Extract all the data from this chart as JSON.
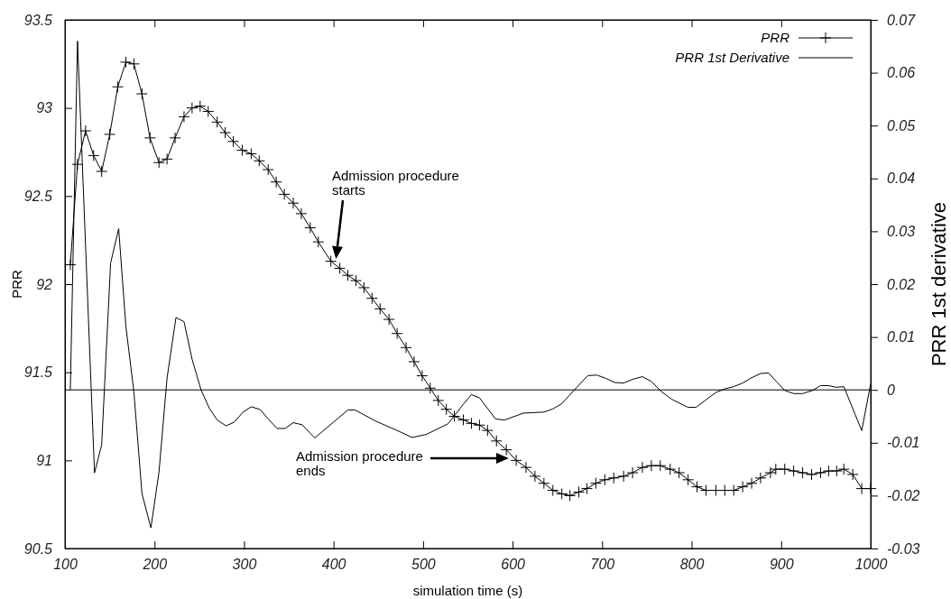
{
  "chart_data": {
    "type": "line",
    "xlabel": "simulation time (s)",
    "ylabel": "PRR",
    "y2label": "PRR 1st derivative",
    "xlim": [
      100,
      1000
    ],
    "xticks": [
      100,
      200,
      300,
      400,
      500,
      600,
      700,
      800,
      900,
      1000
    ],
    "ylim": [
      90.5,
      93.5
    ],
    "yticks": [
      90.5,
      91,
      91.5,
      92,
      92.5,
      93,
      93.5
    ],
    "y2lim": [
      -0.03,
      0.07
    ],
    "y2ticks": [
      -0.03,
      -0.02,
      -0.01,
      0,
      0.01,
      0.02,
      0.03,
      0.04,
      0.05,
      0.06,
      0.07
    ],
    "legend": "top right",
    "grid": false,
    "series": [
      {
        "name": "PRR",
        "color": "#000000",
        "marker": "cross",
        "x": [
          106,
          114,
          123,
          132,
          141,
          150,
          159,
          168,
          177,
          186,
          195,
          205,
          214,
          223,
          233,
          242,
          251,
          260,
          270,
          279,
          288,
          298,
          308,
          317,
          327,
          336,
          345,
          355,
          364,
          374,
          383,
          397,
          407,
          416,
          425,
          434,
          443,
          452,
          462,
          471,
          481,
          490,
          499,
          508,
          517,
          526,
          535,
          545,
          554,
          563,
          572,
          582,
          593,
          604,
          615,
          625,
          635,
          645,
          655,
          664,
          674,
          683,
          693,
          703,
          713,
          724,
          734,
          745,
          755,
          765,
          776,
          786,
          796,
          806,
          816,
          827,
          837,
          847,
          857,
          867,
          877,
          888,
          894,
          904,
          914,
          924,
          934,
          944,
          953,
          962,
          970,
          980,
          990,
          1000
        ],
        "values": [
          92.11,
          92.68,
          92.87,
          92.73,
          92.64,
          92.85,
          93.12,
          93.26,
          93.25,
          93.08,
          92.83,
          92.69,
          92.71,
          92.83,
          92.95,
          93.0,
          93.01,
          92.98,
          92.92,
          92.86,
          92.81,
          92.76,
          92.74,
          92.7,
          92.65,
          92.58,
          92.51,
          92.46,
          92.4,
          92.32,
          92.24,
          92.13,
          92.09,
          92.05,
          92.02,
          91.98,
          91.92,
          91.86,
          91.8,
          91.72,
          91.64,
          91.56,
          91.48,
          91.41,
          91.34,
          91.29,
          91.25,
          91.23,
          91.21,
          91.2,
          91.17,
          91.11,
          91.06,
          91.0,
          90.96,
          90.91,
          90.87,
          90.83,
          90.81,
          90.8,
          90.82,
          90.84,
          90.87,
          90.89,
          90.9,
          90.91,
          90.93,
          90.96,
          90.97,
          90.97,
          90.95,
          90.93,
          90.89,
          90.85,
          90.83,
          90.83,
          90.83,
          90.83,
          90.85,
          90.87,
          90.9,
          90.93,
          90.95,
          90.95,
          90.94,
          90.93,
          90.92,
          90.93,
          90.94,
          90.94,
          90.95,
          90.92,
          90.84,
          90.84
        ]
      },
      {
        "name": "PRR 1st Derivative",
        "color": "#000000",
        "marker": "none",
        "axis": "y2",
        "x": [
          106,
          114,
          133,
          141,
          151,
          160,
          168,
          177,
          186,
          196,
          205,
          214,
          224,
          233,
          242,
          252,
          261,
          270,
          280,
          289,
          299,
          308,
          318,
          327,
          337,
          346,
          355,
          365,
          379,
          416,
          424,
          447,
          470,
          488,
          504,
          528,
          545,
          554,
          563,
          581,
          591,
          612,
          635,
          645,
          655,
          669,
          684,
          694,
          704,
          714,
          724,
          734,
          745,
          755,
          766,
          778,
          796,
          805,
          815,
          827,
          837,
          847,
          857,
          867,
          877,
          886,
          894,
          904,
          914,
          924,
          935,
          944,
          953,
          961,
          970,
          990,
          1000
        ],
        "values": [
          0,
          0.066,
          -0.0157,
          -0.0104,
          0.024,
          0.0305,
          0.0121,
          -0.0004,
          -0.0196,
          -0.0261,
          -0.0156,
          0.0022,
          0.0137,
          0.0129,
          0.0058,
          0,
          -0.0034,
          -0.0057,
          -0.0068,
          -0.0061,
          -0.0042,
          -0.0032,
          -0.0037,
          -0.0055,
          -0.0073,
          -0.0073,
          -0.0062,
          -0.0066,
          -0.0091,
          -0.0038,
          -0.0038,
          -0.0059,
          -0.0076,
          -0.009,
          -0.0084,
          -0.0064,
          -0.0027,
          -0.0009,
          -0.0015,
          -0.0055,
          -0.0057,
          -0.0044,
          -0.0042,
          -0.0036,
          -0.0026,
          0,
          0.0027,
          0.0028,
          0.0022,
          0.0014,
          0.0013,
          0.002,
          0.0025,
          0.0016,
          -0.0003,
          -0.0018,
          -0.0033,
          -0.0033,
          -0.002,
          -0.0005,
          0.0002,
          0.0006,
          0.0013,
          0.0023,
          0.0031,
          0.0032,
          0.0017,
          -0.0001,
          -0.0007,
          -0.0007,
          -0.0001,
          0.0008,
          0.0008,
          0.0005,
          0.0006,
          -0.0077,
          0.0012
        ]
      }
    ],
    "ref_lines": [
      {
        "axis": "y2",
        "value": 0,
        "color": "#000000"
      }
    ],
    "annotations": [
      "Admission procedure\nstarts",
      "Admission procedure\nends"
    ]
  }
}
